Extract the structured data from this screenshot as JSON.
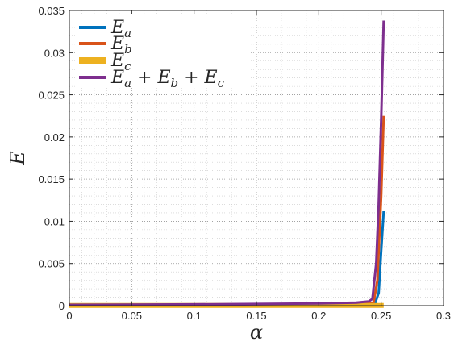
{
  "chart_data": {
    "type": "line",
    "xlabel": "α",
    "ylabel": "E",
    "xlim": [
      0,
      0.3
    ],
    "ylim": [
      0,
      0.035
    ],
    "xticks": [
      "0",
      "0.05",
      "0.1",
      "0.15",
      "0.2",
      "0.25",
      "0.3"
    ],
    "yticks": [
      "0",
      "0.005",
      "0.01",
      "0.015",
      "0.02",
      "0.025",
      "0.03",
      "0.035"
    ],
    "grid": "major-and-minor dotted",
    "legend_placement": "top-left",
    "legend_entries": [
      "E_a",
      "E_b",
      "E_c",
      "E_a + E_b + E_c"
    ],
    "series": [
      {
        "name": "E_a",
        "color": "#0072BD",
        "x": [
          0,
          0.05,
          0.1,
          0.15,
          0.2,
          0.23,
          0.24,
          0.245,
          0.248,
          0.25,
          0.252
        ],
        "y": [
          3e-05,
          4e-05,
          5e-05,
          6e-05,
          8e-05,
          0.0001,
          0.00012,
          0.0002,
          0.0015,
          0.0065,
          0.0112
        ]
      },
      {
        "name": "E_b",
        "color": "#D95319",
        "x": [
          0,
          0.05,
          0.1,
          0.15,
          0.2,
          0.23,
          0.24,
          0.244,
          0.247,
          0.25,
          0.252
        ],
        "y": [
          6e-05,
          8e-05,
          0.0001,
          0.00012,
          0.00016,
          0.0002,
          0.00025,
          0.0004,
          0.003,
          0.013,
          0.0225
        ]
      },
      {
        "name": "E_c",
        "color": "#EDB120",
        "x": [
          0,
          0.05,
          0.1,
          0.15,
          0.2,
          0.24,
          0.25,
          0.252
        ],
        "y": [
          2e-05,
          2e-05,
          2e-05,
          2e-05,
          2e-05,
          2e-05,
          2e-05,
          2e-05
        ]
      },
      {
        "name": "E_a + E_b + E_c",
        "color": "#7E2F8E",
        "x": [
          0,
          0.05,
          0.1,
          0.15,
          0.2,
          0.23,
          0.24,
          0.243,
          0.246,
          0.248,
          0.25,
          0.252
        ],
        "y": [
          0.0001,
          0.00012,
          0.00015,
          0.0002,
          0.00026,
          0.00035,
          0.0005,
          0.0008,
          0.005,
          0.012,
          0.022,
          0.0338
        ]
      }
    ]
  }
}
